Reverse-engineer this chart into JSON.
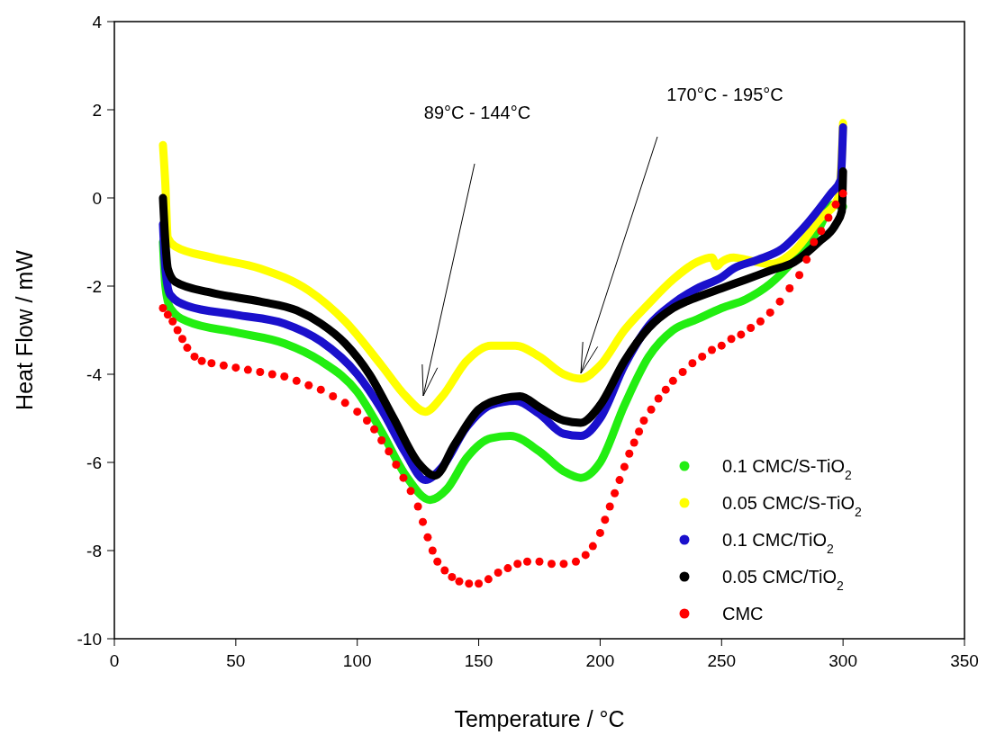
{
  "chart_data": {
    "type": "line",
    "xlabel": "Temperature / °C",
    "ylabel": "Heat Flow  /  mW",
    "xlim": [
      0,
      350
    ],
    "xticks": [
      0,
      50,
      100,
      150,
      200,
      250,
      300,
      350
    ],
    "ylim": [
      -10,
      4
    ],
    "yticks": [
      -10,
      -8,
      -6,
      -4,
      -2,
      0,
      2,
      4
    ],
    "grid": false,
    "legend": "bottom right",
    "annotations": [
      "89°C - 144°C",
      "170°C - 195°C"
    ],
    "series": [
      {
        "name": "0.1 CMC/S-TiO$_{2}$",
        "color": "#22ee11",
        "x": [
          20,
          21,
          23,
          30,
          50,
          70,
          85,
          100,
          110,
          120,
          130,
          137,
          145,
          155,
          163,
          175,
          185,
          192,
          200,
          210,
          220,
          230,
          240,
          250,
          260,
          270,
          280,
          290,
          296,
          300
        ],
        "values": [
          -1.0,
          -2.0,
          -2.5,
          -2.8,
          -3.05,
          -3.3,
          -3.7,
          -4.4,
          -5.3,
          -6.3,
          -6.85,
          -6.6,
          -5.9,
          -5.45,
          -5.4,
          -5.75,
          -6.2,
          -6.35,
          -6.0,
          -4.7,
          -3.6,
          -3.0,
          -2.75,
          -2.5,
          -2.3,
          -1.95,
          -1.4,
          -0.7,
          -0.15,
          -0.2
        ]
      },
      {
        "name": "0.05 CMC/S-TiO$_{2}$",
        "color": "#ffff00",
        "x": [
          20,
          21,
          22,
          25,
          40,
          60,
          80,
          95,
          110,
          120,
          128,
          135,
          145,
          155,
          165,
          175,
          185,
          192,
          200,
          210,
          220,
          230,
          240,
          246,
          248,
          250,
          255,
          260,
          270,
          280,
          290,
          298,
          299.5,
          300
        ],
        "values": [
          1.2,
          0.3,
          -0.9,
          -1.1,
          -1.35,
          -1.6,
          -2.1,
          -2.8,
          -3.8,
          -4.5,
          -4.85,
          -4.5,
          -3.7,
          -3.35,
          -3.35,
          -3.6,
          -4.0,
          -4.1,
          -3.8,
          -3.0,
          -2.4,
          -1.85,
          -1.45,
          -1.35,
          -1.55,
          -1.45,
          -1.35,
          -1.4,
          -1.5,
          -1.2,
          -0.5,
          0.0,
          1.0,
          1.7
        ]
      },
      {
        "name": "0.1 CMC/TiO$_{2}$",
        "color": "#1a10cc",
        "x": [
          20,
          21,
          23,
          30,
          50,
          70,
          85,
          100,
          110,
          120,
          128,
          135,
          145,
          155,
          165,
          175,
          185,
          192,
          200,
          210,
          220,
          230,
          240,
          250,
          255,
          265,
          275,
          285,
          295,
          299,
          300
        ],
        "values": [
          -0.6,
          -1.6,
          -2.2,
          -2.45,
          -2.65,
          -2.85,
          -3.25,
          -4.0,
          -4.8,
          -5.8,
          -6.4,
          -6.1,
          -5.2,
          -4.7,
          -4.6,
          -4.9,
          -5.35,
          -5.4,
          -5.0,
          -3.8,
          -2.9,
          -2.4,
          -2.05,
          -1.8,
          -1.6,
          -1.4,
          -1.15,
          -0.6,
          0.1,
          0.4,
          1.6
        ]
      },
      {
        "name": "0.05 CMC/TiO$_{2}$",
        "color": "#000000",
        "x": [
          20,
          21,
          22,
          25,
          40,
          60,
          75,
          85,
          95,
          105,
          115,
          125,
          132,
          140,
          150,
          160,
          167,
          175,
          185,
          192,
          200,
          210,
          220,
          230,
          240,
          250,
          260,
          270,
          280,
          290,
          297,
          299.5,
          300
        ],
        "values": [
          0.0,
          -1.0,
          -1.6,
          -1.9,
          -2.15,
          -2.35,
          -2.55,
          -2.85,
          -3.3,
          -4.0,
          -5.0,
          -6.0,
          -6.3,
          -5.6,
          -4.8,
          -4.55,
          -4.5,
          -4.75,
          -5.05,
          -5.1,
          -4.7,
          -3.7,
          -2.95,
          -2.5,
          -2.25,
          -2.05,
          -1.85,
          -1.65,
          -1.45,
          -1.0,
          -0.6,
          -0.3,
          0.6
        ]
      },
      {
        "name": "CMC",
        "type": "scatter",
        "marker": "circle",
        "color": "#ff0000",
        "x": [
          20,
          22,
          24,
          26,
          28,
          30,
          33,
          36,
          40,
          45,
          50,
          55,
          60,
          65,
          70,
          75,
          80,
          85,
          90,
          95,
          100,
          104,
          107,
          110,
          113,
          116,
          119,
          122,
          125,
          127,
          129,
          131,
          133,
          136,
          139,
          142,
          146,
          150,
          154,
          158,
          162,
          166,
          170,
          175,
          180,
          185,
          190,
          194,
          197,
          200,
          202,
          204,
          206,
          208,
          210,
          212,
          214,
          216,
          218,
          221,
          224,
          227,
          230,
          234,
          238,
          242,
          246,
          250,
          254,
          258,
          262,
          266,
          270,
          274,
          278,
          282,
          285,
          288,
          291,
          294,
          297,
          300
        ],
        "values": [
          -2.5,
          -2.65,
          -2.8,
          -3.0,
          -3.2,
          -3.4,
          -3.6,
          -3.7,
          -3.75,
          -3.8,
          -3.85,
          -3.9,
          -3.95,
          -4.0,
          -4.05,
          -4.15,
          -4.25,
          -4.35,
          -4.5,
          -4.65,
          -4.85,
          -5.05,
          -5.25,
          -5.5,
          -5.75,
          -6.05,
          -6.35,
          -6.65,
          -7.0,
          -7.35,
          -7.7,
          -8.0,
          -8.25,
          -8.45,
          -8.6,
          -8.7,
          -8.75,
          -8.75,
          -8.65,
          -8.5,
          -8.4,
          -8.3,
          -8.25,
          -8.25,
          -8.3,
          -8.3,
          -8.25,
          -8.1,
          -7.9,
          -7.6,
          -7.3,
          -7.0,
          -6.7,
          -6.4,
          -6.1,
          -5.8,
          -5.55,
          -5.3,
          -5.05,
          -4.8,
          -4.55,
          -4.35,
          -4.15,
          -3.95,
          -3.75,
          -3.6,
          -3.45,
          -3.35,
          -3.2,
          -3.1,
          -2.95,
          -2.8,
          -2.6,
          -2.35,
          -2.05,
          -1.75,
          -1.4,
          -1.0,
          -0.75,
          -0.45,
          -0.15,
          0.1
        ]
      }
    ]
  }
}
